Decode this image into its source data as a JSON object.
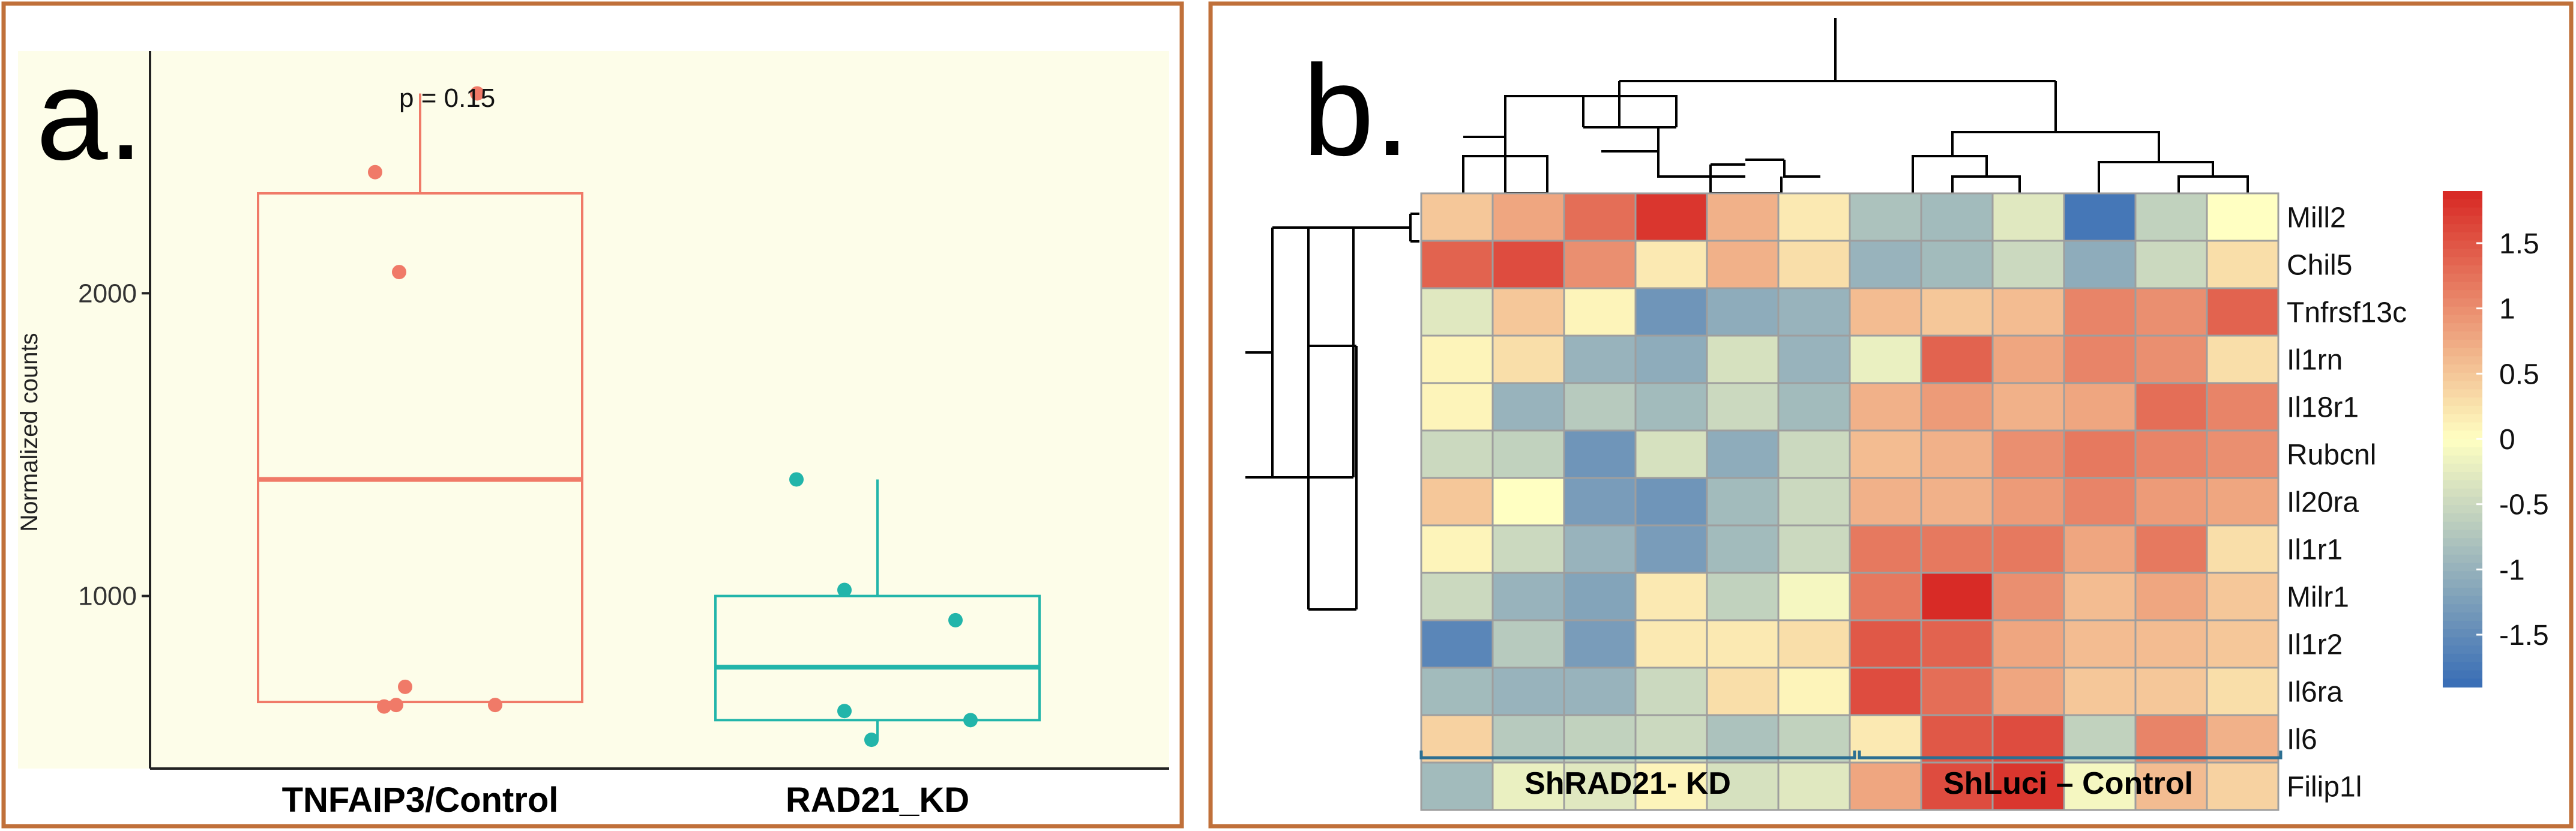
{
  "panel_a": {
    "label": "a.",
    "annotation": "p = 0.15",
    "ylabel": "Normalized counts",
    "yticks": [
      1000,
      2000
    ],
    "ylim": [
      430,
      2800
    ]
  },
  "panel_b": {
    "label": "b.",
    "group_labels": [
      "ShRAD21- KD",
      "ShLuci – Control"
    ],
    "colorbar_ticks": [
      1.5,
      1,
      0.5,
      0,
      -0.5,
      -1,
      -1.5
    ],
    "colorbar_tick_labels": [
      "1.5",
      "1",
      "0.5",
      "0",
      "-0.5",
      "-1",
      "-1.5"
    ]
  },
  "colors": {
    "panel_border": "#c0703a",
    "plot_bg": "#fdfde9",
    "group1": "#f07a68",
    "group2": "#22b5aa",
    "bracket": "#2c6f92",
    "heat_low": "#3b6fb6",
    "heat_mid": "#ffffc2",
    "heat_high": "#d82b26"
  },
  "chart_data": [
    {
      "type": "box",
      "categories": [
        "TNFAIP3/Control",
        "RAD21_KD"
      ],
      "ylabel": "Normalized counts",
      "annotation": "p = 0.15",
      "series": [
        {
          "name": "TNFAIP3/Control",
          "q1": 650,
          "median": 1385,
          "q3": 2330,
          "whisker_low": 650,
          "whisker_high": 2660,
          "points": [
            2660,
            2400,
            2070,
            700,
            640,
            635,
            640
          ]
        },
        {
          "name": "RAD21_KD",
          "q1": 590,
          "median": 765,
          "q3": 1000,
          "whisker_low": 525,
          "whisker_high": 1385,
          "points": [
            1385,
            1020,
            920,
            620,
            590,
            525
          ]
        }
      ]
    },
    {
      "type": "heatmap",
      "rows": [
        "Mill2",
        "Chil5",
        "Tnfrsf13c",
        "Il1rn",
        "Il18r1",
        "Rubcnl",
        "Il20ra",
        "Il1r1",
        "Milr1",
        "Il1r2",
        "Il6ra",
        "Il6",
        "Filip1l"
      ],
      "columns": 12,
      "column_groups": [
        {
          "label": "ShRAD21- KD",
          "columns": [
            1,
            2,
            3,
            4,
            5,
            6
          ]
        },
        {
          "label": "ShLuci – Control",
          "columns": [
            7,
            8,
            9,
            10,
            11,
            12
          ]
        }
      ],
      "colorbar_range": [
        -1.9,
        1.9
      ],
      "values": [
        [
          0.5,
          0.8,
          1.3,
          1.8,
          0.7,
          0.2,
          -0.8,
          -0.9,
          -0.3,
          -1.8,
          -0.6,
          0.0
        ],
        [
          1.4,
          1.6,
          1.0,
          0.2,
          0.7,
          0.3,
          -1.0,
          -0.9,
          -0.5,
          -1.1,
          -0.5,
          0.3
        ],
        [
          -0.3,
          0.5,
          0.1,
          -1.4,
          -1.1,
          -1.0,
          0.6,
          0.5,
          0.6,
          1.1,
          1.0,
          1.4
        ],
        [
          0.1,
          0.3,
          -1.0,
          -1.1,
          -0.4,
          -1.0,
          -0.2,
          1.4,
          0.8,
          1.1,
          1.0,
          0.3
        ],
        [
          0.1,
          -1.0,
          -0.7,
          -0.9,
          -0.5,
          -0.9,
          0.7,
          0.9,
          0.7,
          0.8,
          1.3,
          1.1
        ],
        [
          -0.5,
          -0.6,
          -1.4,
          -0.4,
          -1.1,
          -0.5,
          0.6,
          0.7,
          1.0,
          1.2,
          1.1,
          1.0
        ],
        [
          0.5,
          0.0,
          -1.3,
          -1.4,
          -0.9,
          -0.5,
          0.7,
          0.7,
          0.9,
          1.1,
          0.9,
          0.8
        ],
        [
          0.1,
          -0.5,
          -1.0,
          -1.3,
          -0.9,
          -0.5,
          1.2,
          1.2,
          1.2,
          0.8,
          1.2,
          0.3
        ],
        [
          -0.5,
          -1.0,
          -1.2,
          0.2,
          -0.6,
          -0.1,
          1.2,
          1.9,
          1.0,
          0.6,
          0.8,
          0.5
        ],
        [
          -1.6,
          -0.7,
          -1.3,
          0.2,
          0.2,
          0.3,
          1.5,
          1.4,
          0.8,
          0.6,
          0.6,
          0.5
        ],
        [
          -0.9,
          -1.0,
          -1.0,
          -0.5,
          0.3,
          0.1,
          1.6,
          1.3,
          0.8,
          0.5,
          0.5,
          0.3
        ],
        [
          0.4,
          -0.7,
          -0.6,
          -0.5,
          -0.8,
          -0.6,
          0.2,
          1.5,
          1.6,
          -0.6,
          1.1,
          0.7
        ],
        [
          -0.9,
          -0.2,
          -0.3,
          0.1,
          -0.4,
          -0.3,
          0.8,
          1.6,
          1.8,
          -0.1,
          0.6,
          0.4
        ]
      ]
    }
  ]
}
